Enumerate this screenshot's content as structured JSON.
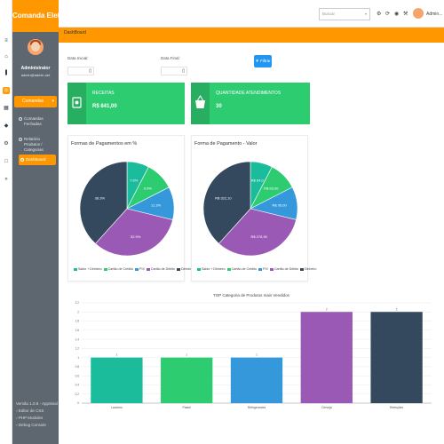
{
  "app": {
    "brand": "Comanda Eletrôni..."
  },
  "user": {
    "name": "Administrator",
    "email": "admin@admin.net",
    "topbar_name": "Admin..."
  },
  "topbar": {
    "search_placeholder": "Buscar"
  },
  "sidebar": {
    "menu_main": "Comandas",
    "sub_items": [
      {
        "label": "Comandas Fechadas"
      },
      {
        "label": "Relatório Produtos / Categorias"
      }
    ],
    "active_item": "DashBoard",
    "footer": [
      "Versão 1.0.8 - AppSisal",
      "Editor de CSS",
      "PHP Modules",
      "Debug Console"
    ]
  },
  "breadcrumb": "DashBoard",
  "filters": {
    "start_label": "Data Inicial:",
    "end_label": "Data Final:",
    "button_label": "Filtrar"
  },
  "stats": [
    {
      "title": "RECEITAS",
      "value": "R$ 841,00",
      "icon": "cash-icon"
    },
    {
      "title": "QUANTIDADE ATENDIMENTOS",
      "value": "30",
      "icon": "basket-icon"
    }
  ],
  "colors": {
    "orange": "#ff9800",
    "green": "#2ecc71",
    "green_dark": "#27ae60",
    "blue": "#2196f3",
    "sidebar": "#5e6770"
  },
  "chart_data": [
    {
      "type": "pie",
      "title": "Formas de Pagamentos em %",
      "categories": [
        "Saldo + Dinheiro",
        "Cartão de Crédito",
        "PIX",
        "Cartão de Débito",
        "Dinheiro"
      ],
      "values": [
        7.6,
        9.9,
        11.3,
        32.9,
        38.3
      ],
      "data_labels": [
        "7.6%",
        "9.9%",
        "11.3%",
        "32.9%",
        "38.3%"
      ],
      "colors": [
        "#1abc9c",
        "#2ecc71",
        "#3498db",
        "#9b59b6",
        "#34495e"
      ]
    },
    {
      "type": "pie",
      "title": "Forma de Pagamento - Valor",
      "categories": [
        "Saldo + Dinheiro",
        "Cartão de Crédito",
        "PIX",
        "Cartão de Débito",
        "Dinheiro"
      ],
      "values": [
        64.0,
        83.0,
        95.0,
        276.9,
        322.1
      ],
      "data_labels": [
        "R$ 64,0",
        "R$ 83,00",
        "R$ 95,00",
        "R$ 276,90",
        "R$ 322,10"
      ],
      "colors": [
        "#1abc9c",
        "#2ecc71",
        "#3498db",
        "#9b59b6",
        "#34495e"
      ]
    },
    {
      "type": "bar",
      "title": "TOP Categoria de Produtos mais Vendidos",
      "categories": [
        "Lanches",
        "Pastel",
        "Refrigerantes",
        "Cerveja",
        "Refeições"
      ],
      "values": [
        1,
        1,
        1,
        2,
        2
      ],
      "data_labels": [
        "1",
        "1",
        "1",
        "2",
        "2"
      ],
      "ylim": [
        0,
        2.2
      ],
      "yticks": [
        "0",
        "0.2",
        "0.4",
        "0.6",
        "0.8",
        "1",
        "1.2",
        "1.4",
        "1.6",
        "1.8",
        "2",
        "2.2"
      ],
      "colors": [
        "#1abc9c",
        "#2ecc71",
        "#3498db",
        "#9b59b6",
        "#34495e"
      ],
      "grid": true
    }
  ]
}
